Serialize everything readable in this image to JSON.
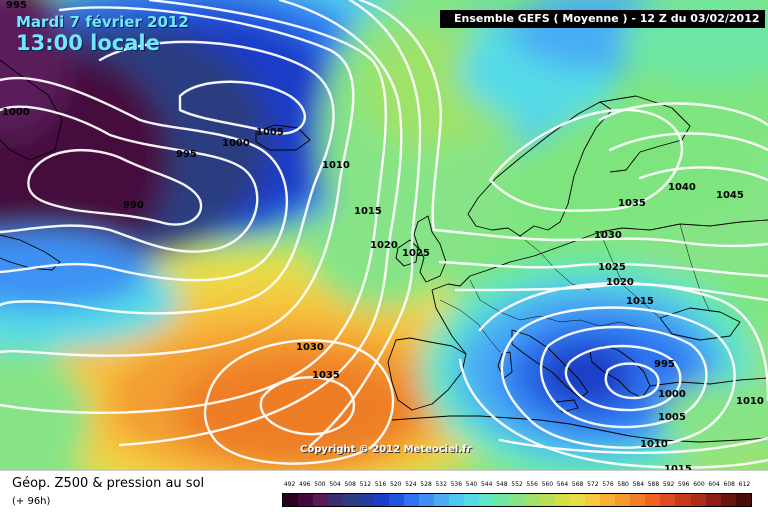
{
  "header": {
    "date_label": "Mardi 7 février 2012",
    "time_label": "13:00 locale",
    "model_run": "Ensemble GEFS ( Moyenne )  -  12 Z du 03/02/2012"
  },
  "map": {
    "copyright": "Copyright © 2012 Meteociel.fr",
    "isobar_labels": [
      "995",
      "1000",
      "1005",
      "995",
      "1000",
      "1010",
      "990",
      "1015",
      "1020",
      "1025",
      "1030",
      "1035",
      "1040",
      "1045",
      "1035",
      "1030",
      "1025",
      "1020",
      "1015",
      "995",
      "1000",
      "1005",
      "1010",
      "1010",
      "1015"
    ],
    "pressure_systems": [
      {
        "type": "high",
        "center_hpa": "1035",
        "location": "near Azores"
      },
      {
        "type": "high",
        "center_hpa": "1045",
        "location": "Russia"
      },
      {
        "type": "low",
        "center_hpa": "995",
        "location": "Ionian Sea / Greece"
      },
      {
        "type": "low",
        "center_hpa": "990",
        "location": "south of Greenland"
      }
    ]
  },
  "legend": {
    "product_title": "Géop. Z500 & pression au sol",
    "lead_time": "(+ 96h)",
    "colorbar_values": [
      "492",
      "496",
      "500",
      "504",
      "508",
      "512",
      "516",
      "520",
      "524",
      "528",
      "532",
      "536",
      "540",
      "544",
      "548",
      "552",
      "556",
      "560",
      "564",
      "568",
      "572",
      "576",
      "580",
      "584",
      "588",
      "592",
      "596",
      "600",
      "604",
      "608",
      "612"
    ],
    "colorbar_colors": [
      "#2a0022",
      "#45083e",
      "#5a1a5a",
      "#3a2f6e",
      "#2c3e80",
      "#263c9c",
      "#1a3ec8",
      "#1f55e0",
      "#2e74f0",
      "#3c92f4",
      "#49acf5",
      "#4ec8f2",
      "#55dbe6",
      "#5ee6c8",
      "#6ee6a4",
      "#86e486",
      "#9ee26a",
      "#b8e056",
      "#d2e048",
      "#eadb48",
      "#f7c93e",
      "#f8b136",
      "#f6982e",
      "#f27e26",
      "#ec6420",
      "#dd4c1c",
      "#c63a18",
      "#ad2c18",
      "#8c1e16",
      "#6a1410",
      "#4a0c0a"
    ],
    "colors": {
      "isobar": "#ffffff",
      "coastline": "#000000",
      "label_text": "#000000",
      "header_bg": "#000000",
      "date_text": "#6fe8ff"
    }
  }
}
